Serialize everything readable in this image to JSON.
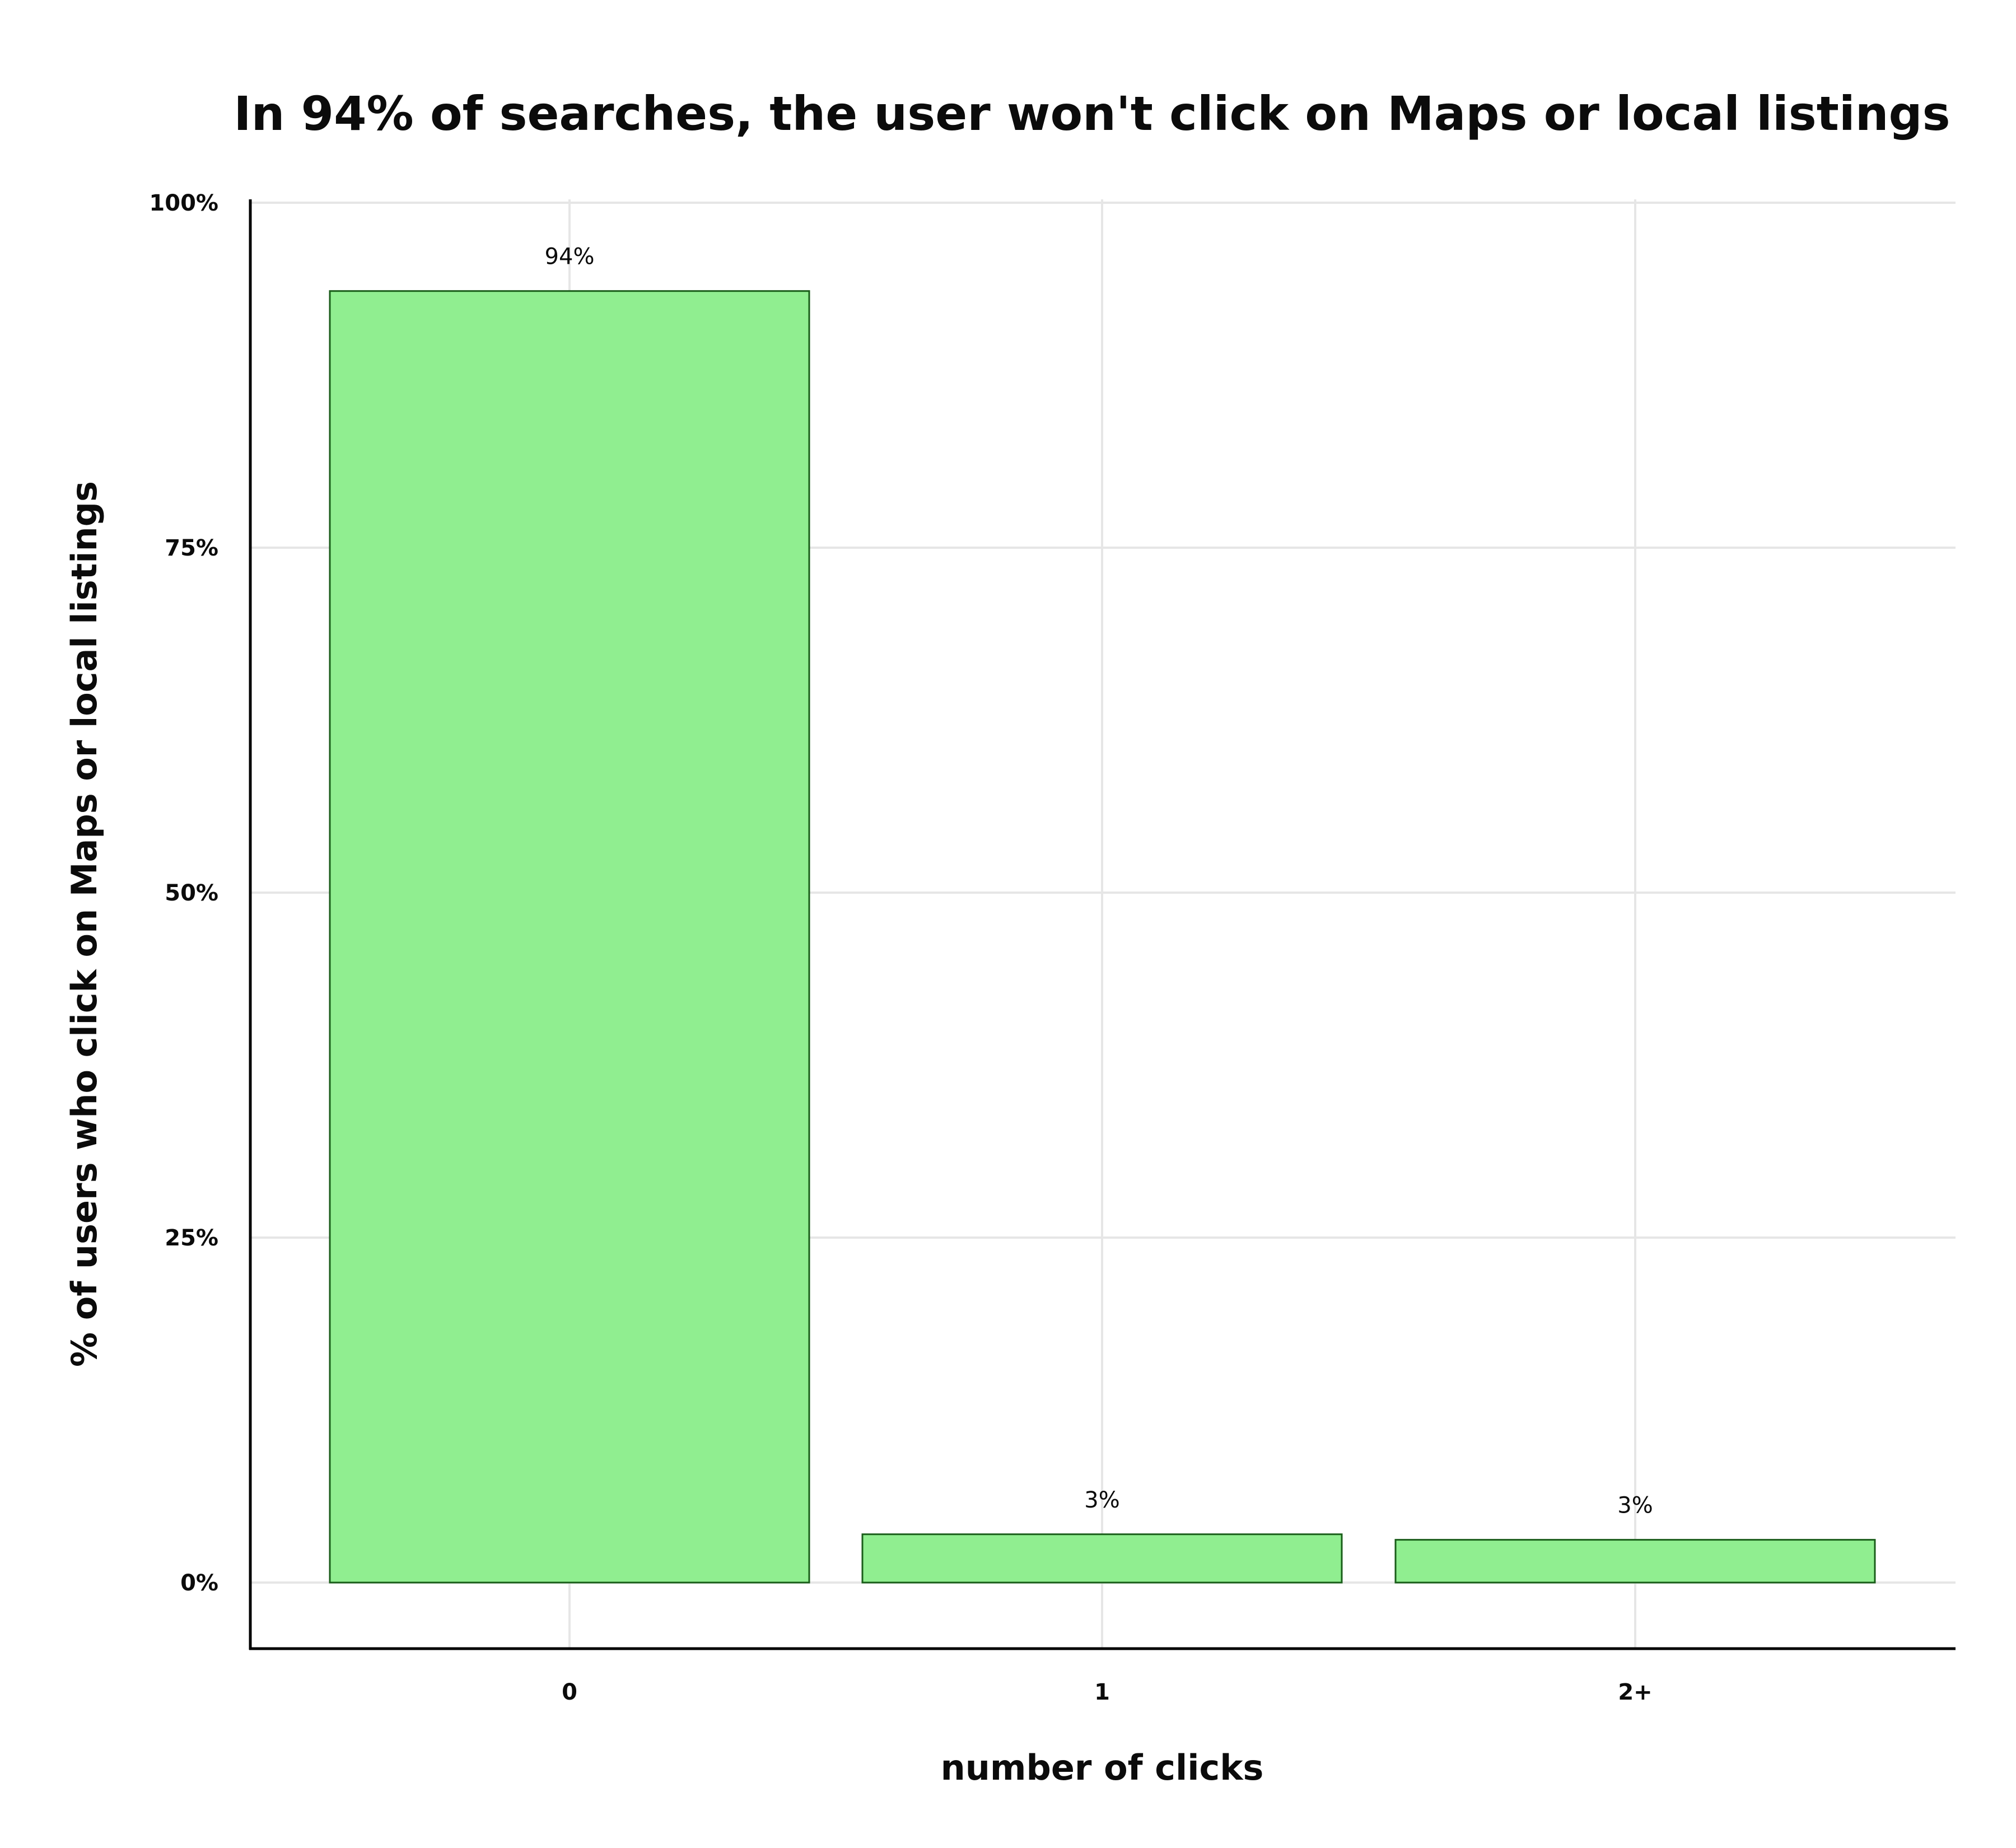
{
  "chart_data": {
    "type": "bar",
    "title": "In 94% of searches, the user won't click on Maps or local listings",
    "xlabel": "number of clicks",
    "ylabel": "% of users who click on Maps or local listings",
    "categories": [
      "0",
      "1",
      "2+"
    ],
    "values": [
      93.6,
      3.5,
      3.1
    ],
    "data_labels": [
      "94%",
      "3%",
      "3%"
    ],
    "ylim": [
      -4.8,
      100
    ],
    "yticks": [
      0,
      25,
      50,
      75,
      100
    ],
    "ytick_labels": [
      "0%",
      "25%",
      "50%",
      "75%",
      "100%"
    ],
    "grid": true,
    "legend": "none",
    "colors": {
      "bar_fill": "#90ee90",
      "bar_stroke": "#1a5e1a",
      "grid": "#e6e6e6",
      "axis": "#000000",
      "text": "#0b0b0b"
    }
  }
}
